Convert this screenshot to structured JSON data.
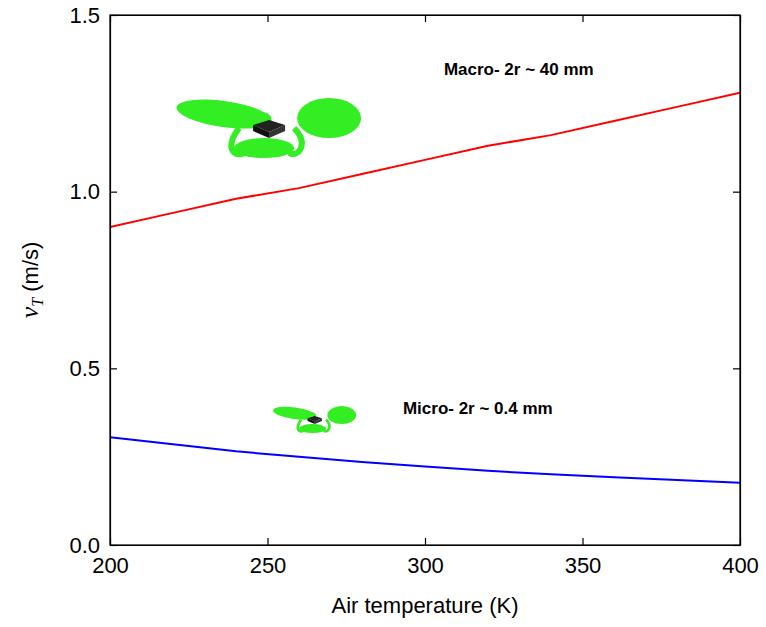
{
  "chart_data": {
    "type": "line",
    "x_label": "Air temperature (K)",
    "y_label": "vT (m/s)",
    "x": [
      200,
      220,
      240,
      260,
      280,
      300,
      320,
      340,
      360,
      380,
      400
    ],
    "series": [
      {
        "name": "Macro",
        "color": "#ff0000",
        "line_style": "solid",
        "values": [
          0.9,
          0.94,
          0.98,
          1.01,
          1.05,
          1.09,
          1.13,
          1.16,
          1.2,
          1.24,
          1.28
        ]
      },
      {
        "name": "Micro",
        "color": "#0000ff",
        "line_style": "solid",
        "values": [
          0.305,
          0.285,
          0.265,
          0.25,
          0.235,
          0.222,
          0.21,
          0.2,
          0.192,
          0.184,
          0.176
        ]
      }
    ],
    "annotations": [
      "Macro- 2r ~ 40 mm",
      "Micro- 2r ~ 0.4 mm"
    ],
    "xlim": [
      200,
      400
    ],
    "xticks": [
      200,
      250,
      300,
      350,
      400
    ],
    "ylim": [
      0,
      1.5
    ],
    "yticks": [
      {
        "value": 0,
        "label": "0.0"
      },
      {
        "value": 0.5,
        "label": "0.5"
      },
      {
        "value": 1.0,
        "label": "1.0"
      },
      {
        "value": 1.5,
        "label": "1.5"
      }
    ],
    "grid": false
  }
}
